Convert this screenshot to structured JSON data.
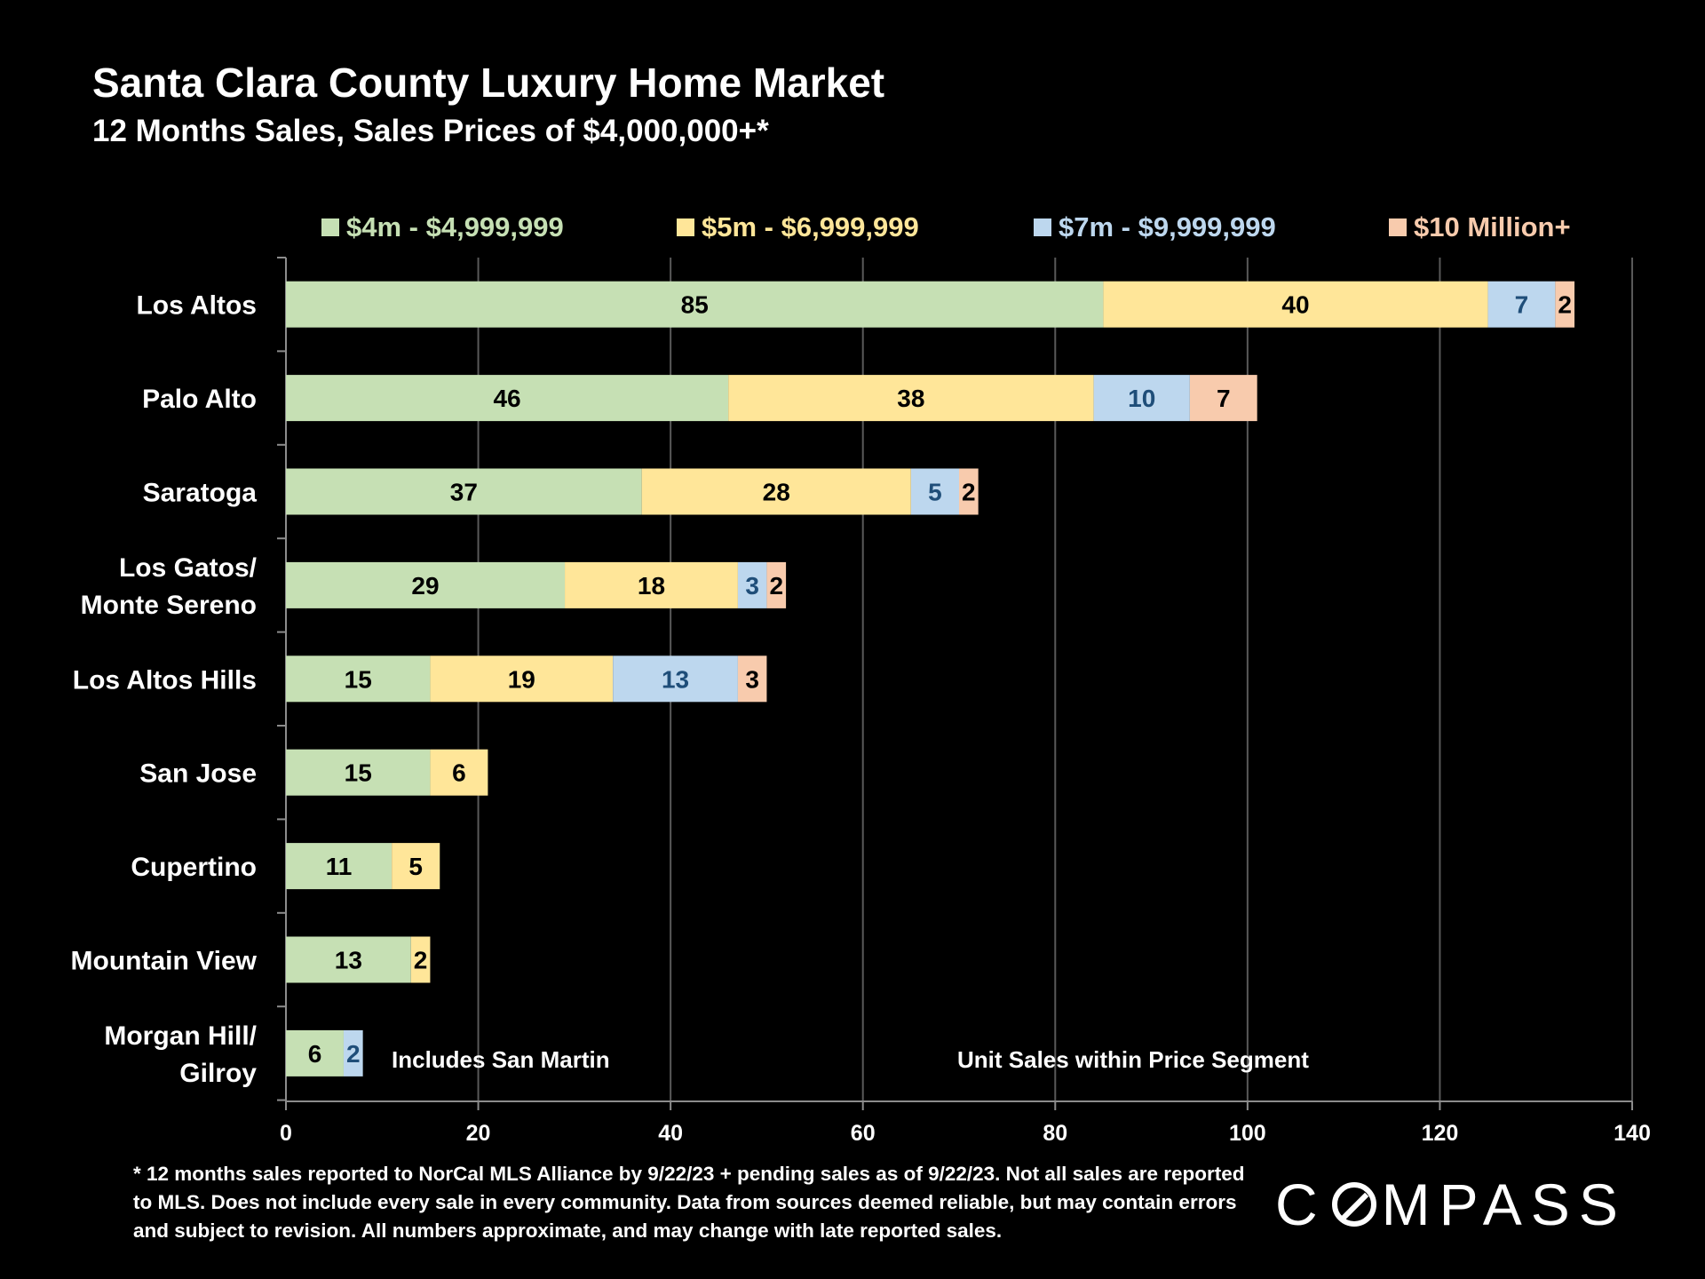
{
  "chart_data": {
    "type": "bar",
    "orientation": "horizontal",
    "stacked": true,
    "title": "Santa Clara County Luxury Home Market",
    "subtitle": "12 Months Sales, Sales Prices of $4,000,000+*",
    "categories": [
      "Los Altos",
      "Palo Alto",
      "Saratoga",
      "Los Gatos/ Monte Sereno",
      "Los Altos Hills",
      "San Jose",
      "Cupertino",
      "Mountain View",
      "Morgan Hill/ Gilroy"
    ],
    "category_lines": [
      [
        "Los Altos"
      ],
      [
        "Palo Alto"
      ],
      [
        "Saratoga"
      ],
      [
        "Los Gatos/",
        "Monte Sereno"
      ],
      [
        "Los Altos Hills"
      ],
      [
        "San Jose"
      ],
      [
        "Cupertino"
      ],
      [
        "Mountain View"
      ],
      [
        "Morgan Hill/",
        "Gilroy"
      ]
    ],
    "series": [
      {
        "name": "$4m - $4,999,999",
        "color": "#c6e0b4",
        "label_color": "#000000",
        "legend_color": "#c6e0b4",
        "values": [
          85,
          46,
          37,
          29,
          15,
          15,
          11,
          13,
          6
        ]
      },
      {
        "name": "$5m - $6,999,999",
        "color": "#ffe699",
        "label_color": "#000000",
        "legend_color": "#ffe699",
        "values": [
          40,
          38,
          28,
          18,
          19,
          6,
          5,
          2,
          0
        ]
      },
      {
        "name": "$7m - $9,999,999",
        "color": "#bdd7ee",
        "label_color": "#1f4e79",
        "legend_color": "#bdd7ee",
        "values": [
          7,
          10,
          5,
          3,
          13,
          0,
          0,
          0,
          2
        ]
      },
      {
        "name": "$10 Million+",
        "color": "#f8cbad",
        "label_color": "#000000",
        "legend_color": "#f8cbad",
        "values": [
          2,
          7,
          2,
          2,
          3,
          0,
          0,
          0,
          0
        ]
      }
    ],
    "xlim": [
      0,
      140
    ],
    "xticks": [
      0,
      20,
      40,
      60,
      80,
      100,
      120,
      140
    ],
    "grid": true,
    "legend": "top",
    "annotations": [
      "Includes San Martin",
      "Unit Sales within Price Segment"
    ]
  },
  "footnote": "* 12 months sales reported to NorCal MLS Alliance by 9/22/23 + pending sales as of 9/22/23. Not all sales are reported to MLS. Does not include every sale in every community. Data from  sources deemed reliable, but may contain errors and subject to revision. All numbers approximate, and may change with late reported sales.",
  "logo": {
    "before": "C",
    "after": "MPASS"
  }
}
